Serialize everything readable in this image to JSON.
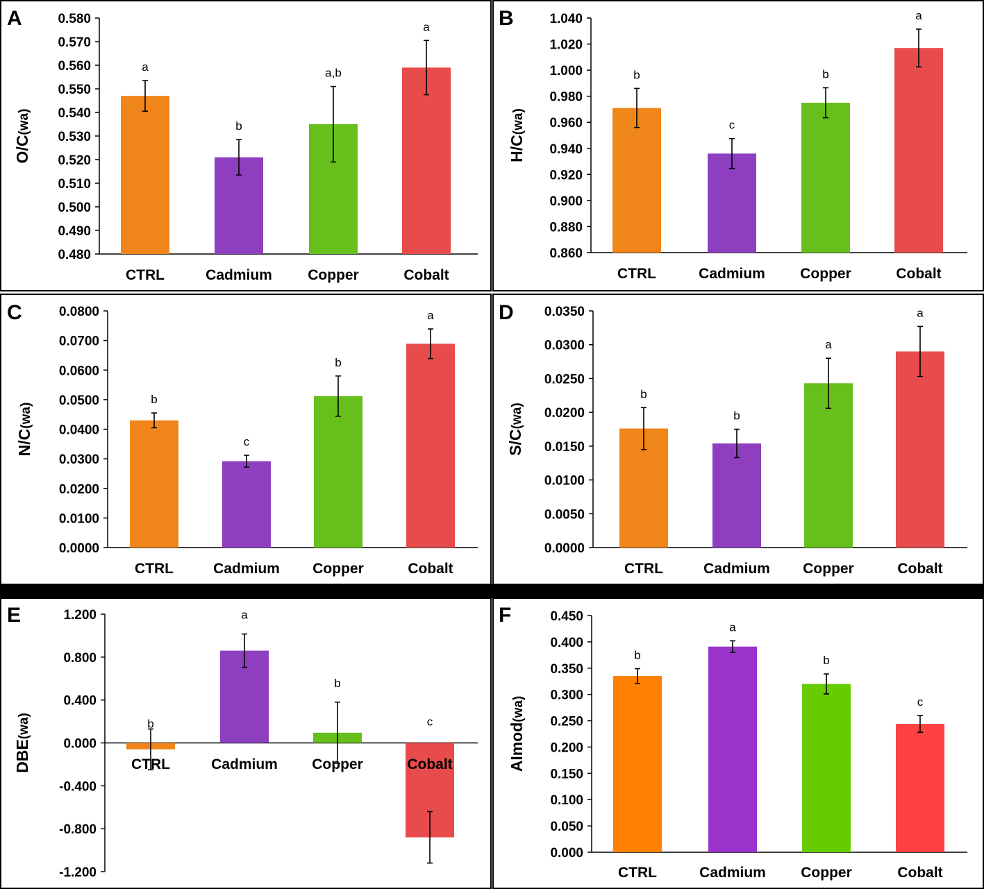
{
  "figure": {
    "colors": {
      "CTRL": "#F08519",
      "Cadmium": "#8E3FBF",
      "Copper": "#66BF1A",
      "Cobalt": "#E84B4B"
    },
    "panel_colors_F": {
      "CTRL": "#FF8000",
      "Cadmium": "#9933CC",
      "Copper": "#66CC00",
      "Cobalt": "#FF4040"
    }
  },
  "chart_data": [
    {
      "type": "bar",
      "panel": "A",
      "title": "",
      "xlabel": "",
      "ylabel": "O/C",
      "ylabel_sub": "(wa)",
      "categories": [
        "CTRL",
        "Cadmium",
        "Copper",
        "Cobalt"
      ],
      "values": [
        0.547,
        0.521,
        0.535,
        0.559
      ],
      "errors": [
        0.0065,
        0.0075,
        0.016,
        0.0115
      ],
      "significance": [
        "a",
        "b",
        "a,b",
        "a"
      ],
      "ylim": [
        0.48,
        0.58
      ],
      "yticks": [
        "0.480",
        "0.490",
        "0.500",
        "0.510",
        "0.520",
        "0.530",
        "0.540",
        "0.550",
        "0.560",
        "0.570",
        "0.580"
      ],
      "grid": false
    },
    {
      "type": "bar",
      "panel": "B",
      "title": "",
      "xlabel": "",
      "ylabel": "H/C",
      "ylabel_sub": "(wa)",
      "categories": [
        "CTRL",
        "Cadmium",
        "Copper",
        "Cobalt"
      ],
      "values": [
        0.971,
        0.936,
        0.975,
        1.017
      ],
      "errors": [
        0.015,
        0.0115,
        0.0115,
        0.0145
      ],
      "significance": [
        "b",
        "c",
        "b",
        "a"
      ],
      "ylim": [
        0.86,
        1.04
      ],
      "yticks": [
        "0.860",
        "0.880",
        "0.900",
        "0.920",
        "0.940",
        "0.960",
        "0.980",
        "1.000",
        "1.020",
        "1.040"
      ],
      "grid": false
    },
    {
      "type": "bar",
      "panel": "C",
      "title": "",
      "xlabel": "",
      "ylabel": "N/C",
      "ylabel_sub": "(wa)",
      "categories": [
        "CTRL",
        "Cadmium",
        "Copper",
        "Cobalt"
      ],
      "values": [
        0.043,
        0.0292,
        0.0512,
        0.0689
      ],
      "errors": [
        0.0025,
        0.002,
        0.0068,
        0.005
      ],
      "significance": [
        "b",
        "c",
        "b",
        "a"
      ],
      "ylim": [
        0,
        0.08
      ],
      "yticks": [
        "0.0000",
        "0.0100",
        "0.0200",
        "0.0300",
        "0.0400",
        "0.0500",
        "0.0600",
        "0.0700",
        "0.0800"
      ],
      "grid": false
    },
    {
      "type": "bar",
      "panel": "D",
      "title": "",
      "xlabel": "",
      "ylabel": "S/C",
      "ylabel_sub": "(wa)",
      "categories": [
        "CTRL",
        "Cadmium",
        "Copper",
        "Cobalt"
      ],
      "values": [
        0.0176,
        0.0154,
        0.0243,
        0.029
      ],
      "errors": [
        0.0031,
        0.0021,
        0.0037,
        0.0037
      ],
      "significance": [
        "b",
        "b",
        "a",
        "a"
      ],
      "ylim": [
        0,
        0.035
      ],
      "yticks": [
        "0.0000",
        "0.0050",
        "0.0100",
        "0.0150",
        "0.0200",
        "0.0250",
        "0.0300",
        "0.0350"
      ],
      "grid": false
    },
    {
      "type": "bar",
      "panel": "E",
      "title": "",
      "xlabel": "",
      "ylabel": "DBE",
      "ylabel_sub": "(wa)",
      "categories": [
        "CTRL",
        "Cadmium",
        "Copper",
        "Cobalt"
      ],
      "values": [
        -0.06,
        0.86,
        0.095,
        -0.88
      ],
      "errors": [
        0.19,
        0.155,
        0.285,
        0.24
      ],
      "significance": [
        "b",
        "a",
        "b",
        "c"
      ],
      "ylim": [
        -1.2,
        1.2
      ],
      "yticks": [
        "-1.200",
        "-0.800",
        "-0.400",
        "0.000",
        "0.400",
        "0.800",
        "1.200"
      ],
      "grid": false
    },
    {
      "type": "bar",
      "panel": "F",
      "title": "",
      "xlabel": "",
      "ylabel": "AImod",
      "ylabel_sub": "(wa)",
      "categories": [
        "CTRL",
        "Cadmium",
        "Copper",
        "Cobalt"
      ],
      "values": [
        0.335,
        0.391,
        0.32,
        0.244
      ],
      "errors": [
        0.014,
        0.011,
        0.019,
        0.016
      ],
      "significance": [
        "b",
        "a",
        "b",
        "c"
      ],
      "ylim": [
        0,
        0.45
      ],
      "yticks": [
        "0.000",
        "0.050",
        "0.100",
        "0.150",
        "0.200",
        "0.250",
        "0.300",
        "0.350",
        "0.400",
        "0.450"
      ],
      "grid": false
    }
  ]
}
